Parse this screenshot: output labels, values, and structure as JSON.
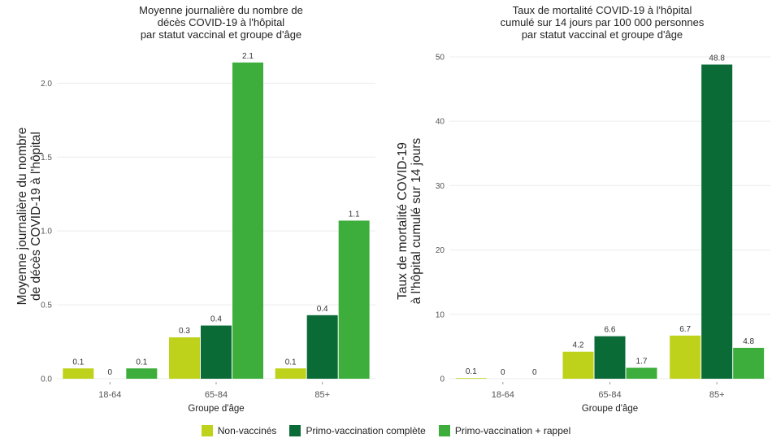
{
  "colors": {
    "non_vaccines": "#bfd21b",
    "primo_complete": "#0b6b37",
    "primo_rappel": "#3dae3c",
    "grid": "#ececec",
    "axis_text": "#555555"
  },
  "legend": [
    {
      "label": "Non-vaccinés",
      "color": "#bfd21b"
    },
    {
      "label": "Primo-vaccination complète",
      "color": "#0b6b37"
    },
    {
      "label": "Primo-vaccination + rappel",
      "color": "#3dae3c"
    }
  ],
  "chart_data": [
    {
      "type": "bar",
      "title": [
        "Moyenne journalière du nombre de",
        "décès COVID-19 à l'hôpital",
        "par statut vaccinal et groupe d'âge"
      ],
      "ylabel": [
        "Moyenne journalière du nombre",
        "de décès COVID-19 à l'hôpital"
      ],
      "xlabel": "Groupe d'âge",
      "categories": [
        "18-64",
        "65-84",
        "85+"
      ],
      "ylim": [
        0,
        2.2
      ],
      "yticks": [
        "0.0",
        "0.5",
        "1.0",
        "1.5",
        "2.0"
      ],
      "ytick_values": [
        0,
        0.5,
        1.0,
        1.5,
        2.0
      ],
      "grid": true,
      "series": [
        {
          "name": "Non-vaccinés",
          "values": [
            0.07,
            0.28,
            0.07
          ],
          "labels": [
            "0.1",
            "0.3",
            "0.1"
          ]
        },
        {
          "name": "Primo-vaccination complète",
          "values": [
            0.0,
            0.36,
            0.43
          ],
          "labels": [
            "0",
            "0.4",
            "0.4"
          ]
        },
        {
          "name": "Primo-vaccination + rappel",
          "values": [
            0.07,
            2.14,
            1.07
          ],
          "labels": [
            "0.1",
            "2.1",
            "1.1"
          ]
        }
      ]
    },
    {
      "type": "bar",
      "title": [
        "Taux de mortalité COVID-19 à l'hôpital",
        "cumulé sur 14 jours par 100 000 personnes",
        "par statut vaccinal et groupe d'âge"
      ],
      "ylabel": [
        "Taux de mortalité COVID-19",
        "à l'hôpital cumulé sur 14 jours"
      ],
      "xlabel": "Groupe d'âge",
      "categories": [
        "18-64",
        "65-84",
        "85+"
      ],
      "ylim": [
        0,
        50.5
      ],
      "yticks": [
        "0",
        "10",
        "20",
        "30",
        "40",
        "50"
      ],
      "ytick_values": [
        0,
        10,
        20,
        30,
        40,
        50
      ],
      "grid": true,
      "series": [
        {
          "name": "Non-vaccinés",
          "values": [
            0.1,
            4.2,
            6.7
          ],
          "labels": [
            "0.1",
            "4.2",
            "6.7"
          ]
        },
        {
          "name": "Primo-vaccination complète",
          "values": [
            0.0,
            6.6,
            48.8
          ],
          "labels": [
            "0",
            "6.6",
            "48.8"
          ]
        },
        {
          "name": "Primo-vaccination + rappel",
          "values": [
            0.0,
            1.7,
            4.8
          ],
          "labels": [
            "0",
            "1.7",
            "4.8"
          ]
        }
      ]
    }
  ]
}
